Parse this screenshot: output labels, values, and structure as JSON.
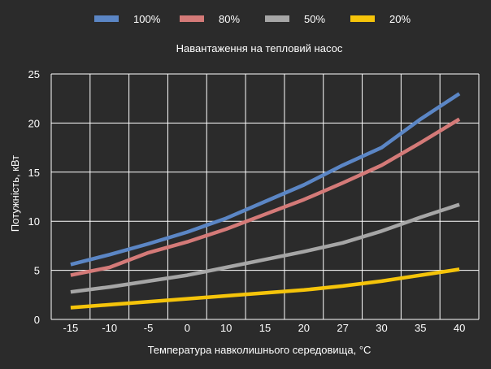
{
  "chart_data": {
    "type": "line",
    "title": "Навантаження на тепловий насос",
    "xlabel": "Температура навколишнього середовища, °С",
    "ylabel": "Потужність, кВт",
    "categories": [
      "-15",
      "-10",
      "-5",
      "0",
      "10",
      "15",
      "20",
      "27",
      "30",
      "35",
      "40"
    ],
    "ylim": [
      0,
      25
    ],
    "yticks": [
      0,
      5,
      10,
      15,
      20,
      25
    ],
    "grid": true,
    "legend_position": "top",
    "series": [
      {
        "name": "100%",
        "color": "#5b86c5",
        "values": [
          5.6,
          6.6,
          7.7,
          8.9,
          10.3,
          12.0,
          13.7,
          15.7,
          17.5,
          20.4,
          23.0
        ]
      },
      {
        "name": "80%",
        "color": "#d47a78",
        "values": [
          4.5,
          5.3,
          6.8,
          7.9,
          9.2,
          10.7,
          12.2,
          13.9,
          15.7,
          18.0,
          20.4
        ]
      },
      {
        "name": "50%",
        "color": "#a6a6a6",
        "values": [
          2.8,
          3.3,
          3.9,
          4.5,
          5.3,
          6.1,
          6.9,
          7.8,
          9.0,
          10.4,
          11.7
        ]
      },
      {
        "name": "20%",
        "color": "#f5c40a",
        "values": [
          1.2,
          1.5,
          1.8,
          2.1,
          2.4,
          2.7,
          3.0,
          3.4,
          3.9,
          4.5,
          5.1
        ]
      }
    ]
  }
}
